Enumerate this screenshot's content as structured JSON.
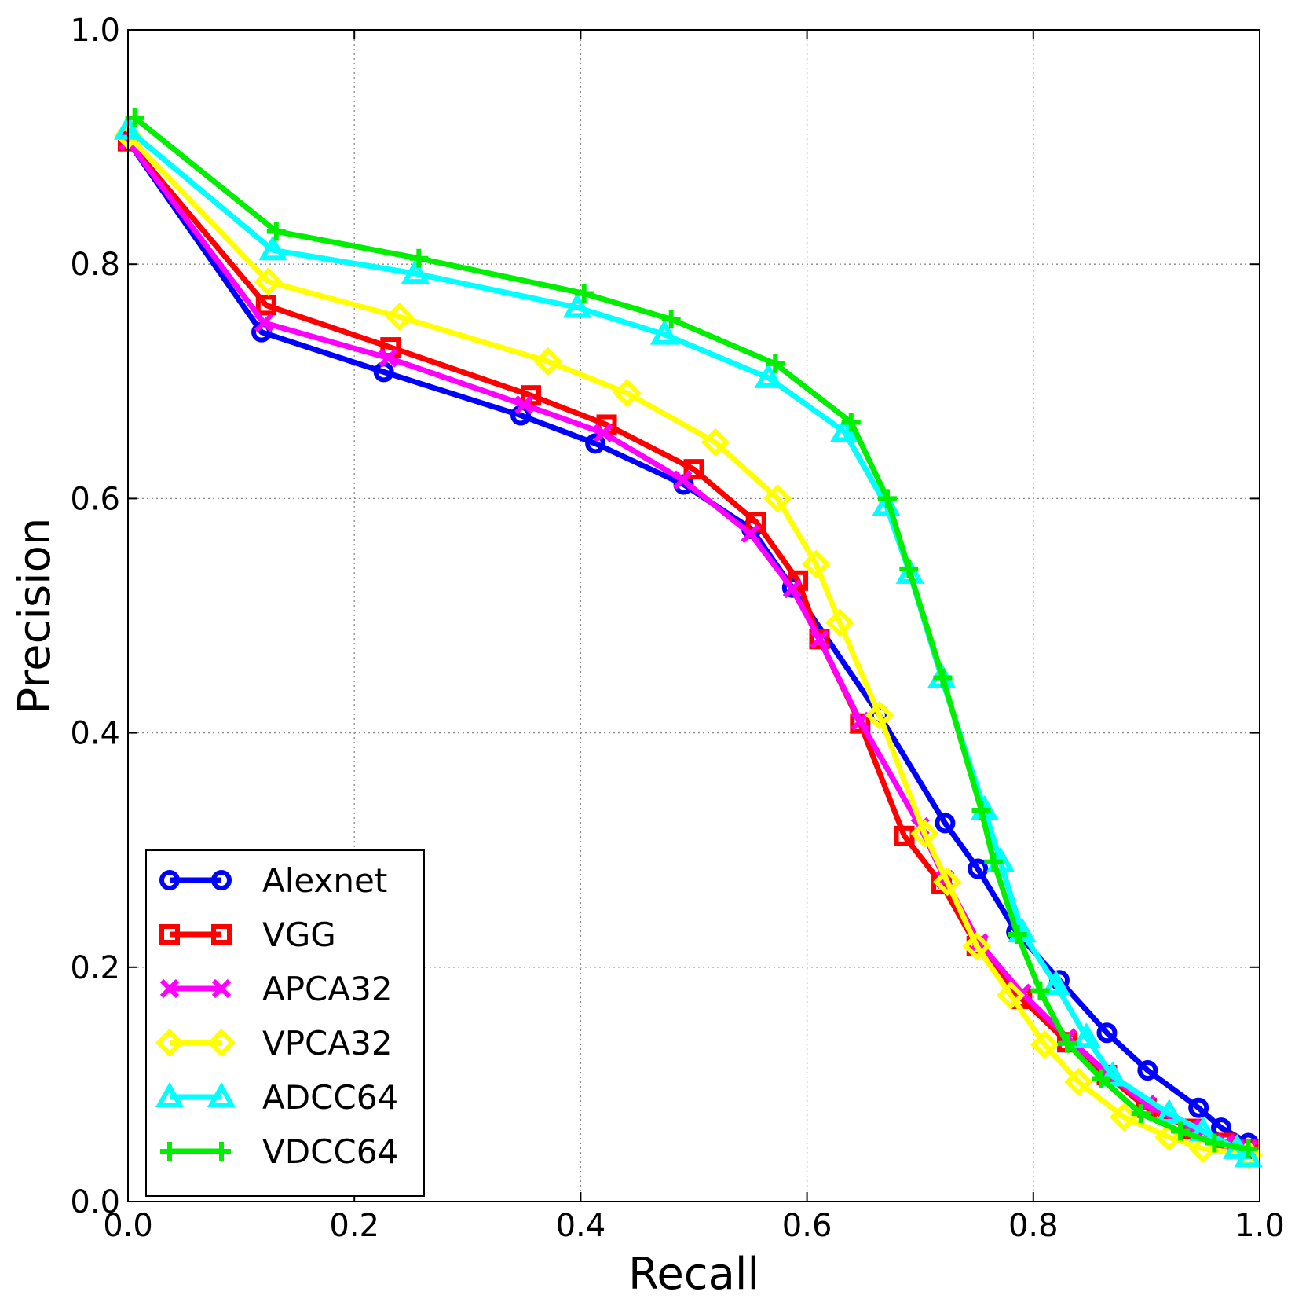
{
  "chart_data": {
    "type": "line",
    "title": "",
    "xlabel": "Recall",
    "ylabel": "Precision",
    "xlim": [
      0.0,
      1.0
    ],
    "ylim": [
      0.0,
      1.0
    ],
    "xticks": [
      "0.0",
      "0.2",
      "0.4",
      "0.6",
      "0.8",
      "1.0"
    ],
    "yticks": [
      "0.0",
      "0.2",
      "0.4",
      "0.6",
      "0.8",
      "1.0"
    ],
    "grid": true,
    "legend_position": "lower-left",
    "series": [
      {
        "name": "Alexnet",
        "color": "#0000ff",
        "marker": "circle",
        "x": [
          0.0,
          0.118,
          0.226,
          0.347,
          0.413,
          0.491,
          0.551,
          0.587,
          0.664,
          0.722,
          0.751,
          0.785,
          0.823,
          0.865,
          0.901,
          0.946,
          0.966,
          0.99
        ],
        "y": [
          0.905,
          0.742,
          0.708,
          0.671,
          0.647,
          0.612,
          0.574,
          0.524,
          0.415,
          0.323,
          0.284,
          0.23,
          0.189,
          0.144,
          0.112,
          0.08,
          0.063,
          0.05
        ]
      },
      {
        "name": "VGG",
        "color": "#ff0000",
        "marker": "square",
        "x": [
          0.0,
          0.122,
          0.232,
          0.356,
          0.423,
          0.5,
          0.555,
          0.592,
          0.611,
          0.647,
          0.686,
          0.719,
          0.75,
          0.79,
          0.83,
          0.865,
          0.9,
          0.94,
          0.97,
          0.99
        ],
        "y": [
          0.905,
          0.765,
          0.729,
          0.688,
          0.663,
          0.625,
          0.58,
          0.53,
          0.48,
          0.408,
          0.312,
          0.271,
          0.218,
          0.173,
          0.136,
          0.108,
          0.08,
          0.062,
          0.05,
          0.045
        ]
      },
      {
        "name": "APCA32",
        "color": "#ff00ff",
        "marker": "x",
        "x": [
          0.0,
          0.12,
          0.23,
          0.35,
          0.42,
          0.49,
          0.55,
          0.587,
          0.611,
          0.647,
          0.7,
          0.722,
          0.752,
          0.79,
          0.83,
          0.865,
          0.9,
          0.94,
          0.97,
          0.99
        ],
        "y": [
          0.905,
          0.75,
          0.72,
          0.68,
          0.656,
          0.616,
          0.57,
          0.523,
          0.48,
          0.41,
          0.32,
          0.275,
          0.221,
          0.178,
          0.14,
          0.11,
          0.083,
          0.063,
          0.05,
          0.045
        ]
      },
      {
        "name": "VPCA32",
        "color": "#ffff00",
        "marker": "diamond",
        "x": [
          0.0,
          0.124,
          0.24,
          0.371,
          0.441,
          0.519,
          0.574,
          0.608,
          0.629,
          0.664,
          0.704,
          0.724,
          0.75,
          0.78,
          0.81,
          0.84,
          0.88,
          0.92,
          0.95,
          0.99
        ],
        "y": [
          0.91,
          0.785,
          0.755,
          0.717,
          0.69,
          0.648,
          0.6,
          0.544,
          0.494,
          0.415,
          0.314,
          0.273,
          0.218,
          0.176,
          0.134,
          0.102,
          0.072,
          0.055,
          0.045,
          0.04
        ]
      },
      {
        "name": "ADCC64",
        "color": "#00ffff",
        "marker": "triangle",
        "x": [
          0.0,
          0.128,
          0.254,
          0.397,
          0.474,
          0.566,
          0.633,
          0.67,
          0.691,
          0.719,
          0.757,
          0.771,
          0.79,
          0.82,
          0.847,
          0.87,
          0.92,
          0.95,
          0.98,
          0.99
        ],
        "y": [
          0.915,
          0.812,
          0.792,
          0.763,
          0.74,
          0.703,
          0.657,
          0.594,
          0.536,
          0.447,
          0.334,
          0.29,
          0.23,
          0.185,
          0.14,
          0.107,
          0.075,
          0.06,
          0.045,
          0.038
        ]
      },
      {
        "name": "VDCC64",
        "color": "#00ee00",
        "marker": "plus",
        "x": [
          0.006,
          0.131,
          0.257,
          0.403,
          0.48,
          0.572,
          0.639,
          0.671,
          0.69,
          0.72,
          0.754,
          0.765,
          0.786,
          0.806,
          0.83,
          0.86,
          0.895,
          0.93,
          0.96,
          0.99
        ],
        "y": [
          0.925,
          0.828,
          0.805,
          0.775,
          0.753,
          0.715,
          0.665,
          0.6,
          0.54,
          0.447,
          0.334,
          0.29,
          0.228,
          0.18,
          0.135,
          0.105,
          0.075,
          0.06,
          0.05,
          0.045
        ]
      }
    ]
  }
}
